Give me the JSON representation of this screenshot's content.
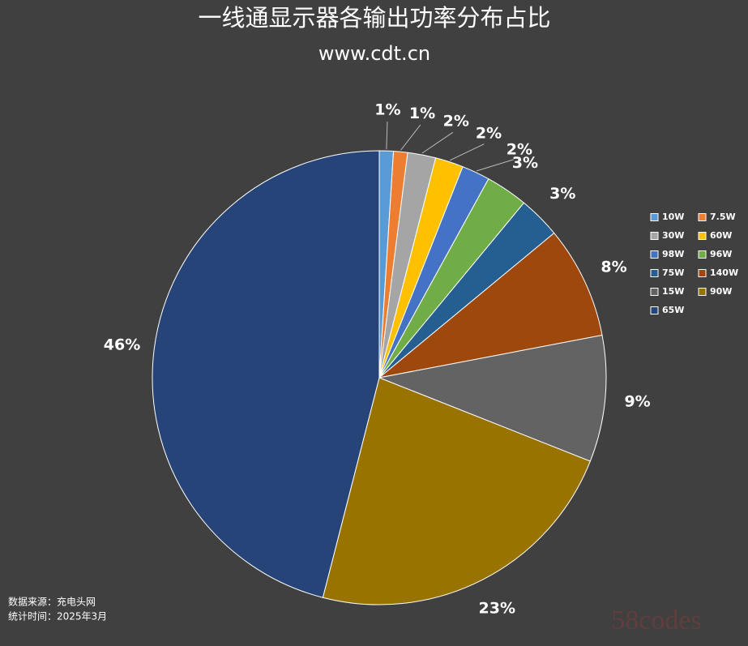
{
  "chart_data": {
    "type": "pie",
    "title": "一线通显示器各输出功率分布占比",
    "subtitle": "www.cdt.cn",
    "categories": [
      "10W",
      "7.5W",
      "30W",
      "60W",
      "98W",
      "96W",
      "75W",
      "140W",
      "15W",
      "90W",
      "65W"
    ],
    "values": [
      1,
      1,
      2,
      2,
      2,
      3,
      3,
      8,
      9,
      23,
      46
    ],
    "value_labels": [
      "1%",
      "1%",
      "2%",
      "2%",
      "2%",
      "3%",
      "3%",
      "8%",
      "9%",
      "23%",
      "46%"
    ],
    "colors": [
      "#5b9bd5",
      "#ed7d31",
      "#a5a5a5",
      "#ffc000",
      "#4472c4",
      "#70ad47",
      "#255e91",
      "#9e480e",
      "#636363",
      "#997300",
      "#264478"
    ],
    "legend": "right",
    "notes": [
      "数据来源：充电头网",
      "统计时间：2025年3月"
    ],
    "watermark": "58codes"
  }
}
